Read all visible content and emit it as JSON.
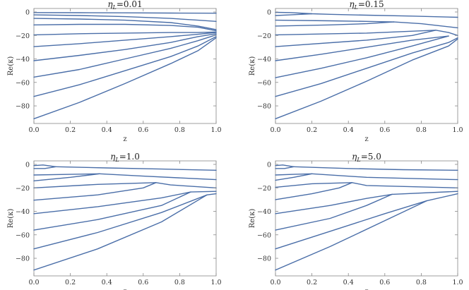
{
  "chart_data": [
    {
      "type": "line",
      "title_symbol": "η",
      "title_sub": "L",
      "title_value": "=0.01",
      "xlabel": "z",
      "ylabel": "Re(κ)",
      "xlim": [
        0,
        1
      ],
      "ylim": [
        -95,
        3
      ],
      "xticks": [
        "0.0",
        "0.2",
        "0.4",
        "0.6",
        "0.8",
        "1.0"
      ],
      "yticks": [
        "0",
        "-20",
        "-40",
        "-60",
        "-80"
      ],
      "line_color": "#4a6ea8",
      "series": [
        {
          "x": [
            0,
            0.25,
            0.5,
            0.75,
            1.0
          ],
          "y": [
            -0.5,
            -0.6,
            -0.7,
            -0.9,
            -1
          ]
        },
        {
          "x": [
            0,
            0.25,
            0.5,
            0.75,
            0.9,
            1.0
          ],
          "y": [
            -2.5,
            -3,
            -4,
            -5.5,
            -7,
            -8
          ]
        },
        {
          "x": [
            0,
            0.25,
            0.5,
            0.75,
            0.9,
            1.0
          ],
          "y": [
            -5.5,
            -6,
            -7,
            -9,
            -12,
            -15
          ]
        },
        {
          "x": [
            0,
            0.25,
            0.5,
            0.75,
            0.9,
            1.0
          ],
          "y": [
            -11,
            -10.5,
            -10.5,
            -11.5,
            -13,
            -16
          ]
        },
        {
          "x": [
            0,
            0.25,
            0.5,
            0.75,
            0.9,
            1.0
          ],
          "y": [
            -19.5,
            -18.5,
            -18,
            -17.5,
            -17.5,
            -17
          ]
        },
        {
          "x": [
            0,
            0.25,
            0.5,
            0.75,
            0.9,
            1.0
          ],
          "y": [
            -29.5,
            -27,
            -24,
            -21,
            -19,
            -17.5
          ]
        },
        {
          "x": [
            0,
            0.25,
            0.5,
            0.75,
            0.9,
            1.0
          ],
          "y": [
            -41.5,
            -37,
            -32,
            -26,
            -21,
            -18.5
          ]
        },
        {
          "x": [
            0,
            0.25,
            0.5,
            0.75,
            0.9,
            1.0
          ],
          "y": [
            -55.5,
            -49,
            -40,
            -31,
            -24.5,
            -19.5
          ]
        },
        {
          "x": [
            0,
            0.25,
            0.5,
            0.75,
            0.9,
            1.0
          ],
          "y": [
            -72,
            -62,
            -50,
            -38,
            -29,
            -21
          ]
        },
        {
          "x": [
            0,
            0.25,
            0.5,
            0.75,
            0.9,
            1.0
          ],
          "y": [
            -91,
            -77,
            -61,
            -44,
            -33,
            -22
          ]
        }
      ]
    },
    {
      "type": "line",
      "title_symbol": "η",
      "title_sub": "L",
      "title_value": "=0.15",
      "xlabel": "z",
      "ylabel": "Re(κ)",
      "xlim": [
        0,
        1
      ],
      "ylim": [
        -95,
        3
      ],
      "xticks": [
        "0.0",
        "0.2",
        "0.4",
        "0.6",
        "0.8",
        "1.0"
      ],
      "yticks": [
        "0",
        "-20",
        "-40",
        "-60",
        "-80"
      ],
      "line_color": "#4a6ea8",
      "series": [
        {
          "x": [
            0,
            0.08,
            0.2,
            0.3,
            0.5,
            0.75,
            1.0
          ],
          "y": [
            -0.3,
            -0.5,
            -1.5,
            -2,
            -2.7,
            -3.5,
            -4.5
          ]
        },
        {
          "x": [
            0,
            0.08,
            0.2
          ],
          "y": [
            -3,
            -2.5,
            -1.5
          ]
        },
        {
          "x": [
            0,
            0.3,
            0.5,
            0.65
          ],
          "y": [
            -7,
            -7.5,
            -8,
            -8.5
          ]
        },
        {
          "x": [
            0,
            0.3,
            0.5,
            0.65
          ],
          "y": [
            -12,
            -11,
            -10,
            -8.5
          ]
        },
        {
          "x": [
            0.65,
            0.8,
            1.0
          ],
          "y": [
            -8.5,
            -10,
            -13.5
          ]
        },
        {
          "x": [
            0,
            0.5,
            0.88
          ],
          "y": [
            -19.5,
            -18,
            -15.5
          ]
        },
        {
          "x": [
            0,
            0.5,
            0.75,
            0.88
          ],
          "y": [
            -29.5,
            -24,
            -20,
            -15.5
          ]
        },
        {
          "x": [
            0.88,
            0.95,
            1.0
          ],
          "y": [
            -15.5,
            -17.5,
            -20
          ]
        },
        {
          "x": [
            0,
            0.25,
            0.5,
            0.75,
            0.95
          ],
          "y": [
            -41.5,
            -36,
            -30,
            -24,
            -20.5
          ]
        },
        {
          "x": [
            0,
            0.25,
            0.5,
            0.75,
            0.95
          ],
          "y": [
            -56,
            -48,
            -39,
            -29,
            -20.5
          ]
        },
        {
          "x": [
            0,
            0.25,
            0.5,
            0.75,
            0.95,
            1.0
          ],
          "y": [
            -72,
            -61,
            -48,
            -35,
            -26,
            -22
          ]
        },
        {
          "x": [
            0,
            0.25,
            0.5,
            0.75,
            0.95,
            1.0
          ],
          "y": [
            -91,
            -76,
            -59,
            -41,
            -29,
            -23
          ]
        }
      ]
    },
    {
      "type": "line",
      "title_symbol": "η",
      "title_sub": "L",
      "title_value": "=1.0",
      "xlabel": "z",
      "ylabel": "Re(κ)",
      "xlim": [
        0,
        1
      ],
      "ylim": [
        -95,
        3
      ],
      "xticks": [
        "0.0",
        "0.2",
        "0.4",
        "0.6",
        "0.8",
        "1.0"
      ],
      "yticks": [
        "0",
        "-20",
        "-40",
        "-60",
        "-80"
      ],
      "line_color": "#4a6ea8",
      "series": [
        {
          "x": [
            0,
            0.05,
            0.12
          ],
          "y": [
            -1,
            -0.5,
            -2
          ]
        },
        {
          "x": [
            0,
            0.06,
            0.12
          ],
          "y": [
            -3.5,
            -3.5,
            -2
          ]
        },
        {
          "x": [
            0.12,
            0.4,
            0.7,
            1.0
          ],
          "y": [
            -2,
            -3,
            -4,
            -5
          ]
        },
        {
          "x": [
            0,
            0.2,
            0.36
          ],
          "y": [
            -9,
            -8.5,
            -8
          ]
        },
        {
          "x": [
            0,
            0.2,
            0.36
          ],
          "y": [
            -14,
            -11,
            -8
          ]
        },
        {
          "x": [
            0.36,
            0.6,
            1.0
          ],
          "y": [
            -8,
            -10,
            -13
          ]
        },
        {
          "x": [
            0,
            0.35,
            0.67
          ],
          "y": [
            -20,
            -17,
            -15.5
          ]
        },
        {
          "x": [
            0,
            0.35,
            0.6,
            0.67
          ],
          "y": [
            -30.5,
            -26,
            -20,
            -15.5
          ]
        },
        {
          "x": [
            0.67,
            0.75,
            1.0
          ],
          "y": [
            -15.5,
            -17.5,
            -20
          ]
        },
        {
          "x": [
            0,
            0.35,
            0.7,
            0.86
          ],
          "y": [
            -42,
            -36,
            -28.5,
            -23.5
          ]
        },
        {
          "x": [
            0,
            0.35,
            0.7,
            0.86
          ],
          "y": [
            -56,
            -47,
            -35,
            -23.5
          ]
        },
        {
          "x": [
            0.86,
            1.0
          ],
          "y": [
            -23.5,
            -23
          ]
        },
        {
          "x": [
            0,
            0.35,
            0.7,
            0.95
          ],
          "y": [
            -72,
            -58,
            -41,
            -26
          ]
        },
        {
          "x": [
            0,
            0.35,
            0.7,
            0.95
          ],
          "y": [
            -90,
            -72,
            -49,
            -26
          ]
        },
        {
          "x": [
            0.95,
            1.0
          ],
          "y": [
            -26,
            -25
          ]
        }
      ]
    },
    {
      "type": "line",
      "title_symbol": "η",
      "title_sub": "L",
      "title_value": "=5.0",
      "xlabel": "z",
      "ylabel": "Re(κ)",
      "xlim": [
        0,
        1
      ],
      "ylim": [
        -95,
        3
      ],
      "xticks": [
        "0.0",
        "0.2",
        "0.4",
        "0.6",
        "0.8",
        "1.0"
      ],
      "yticks": [
        "0",
        "-20",
        "-40",
        "-60",
        "-80"
      ],
      "line_color": "#4a6ea8",
      "series": [
        {
          "x": [
            0,
            0.04,
            0.1
          ],
          "y": [
            -1,
            -0.5,
            -2
          ]
        },
        {
          "x": [
            0,
            0.05,
            0.1
          ],
          "y": [
            -3.5,
            -3.5,
            -2
          ]
        },
        {
          "x": [
            0.1,
            0.4,
            0.7,
            1.0
          ],
          "y": [
            -2,
            -3.5,
            -4.5,
            -5
          ]
        },
        {
          "x": [
            0,
            0.1,
            0.2
          ],
          "y": [
            -9,
            -8.5,
            -8
          ]
        },
        {
          "x": [
            0,
            0.1,
            0.2
          ],
          "y": [
            -13.5,
            -11,
            -8
          ]
        },
        {
          "x": [
            0.2,
            0.5,
            1.0
          ],
          "y": [
            -8,
            -11,
            -13
          ]
        },
        {
          "x": [
            0,
            0.2,
            0.42
          ],
          "y": [
            -19.5,
            -16.5,
            -15.5
          ]
        },
        {
          "x": [
            0,
            0.2,
            0.35,
            0.42
          ],
          "y": [
            -30,
            -25,
            -20,
            -15.5
          ]
        },
        {
          "x": [
            0.42,
            0.5,
            1.0
          ],
          "y": [
            -15.5,
            -18,
            -20
          ]
        },
        {
          "x": [
            0,
            0.3,
            0.5,
            0.64
          ],
          "y": [
            -42,
            -35,
            -29,
            -25.5
          ]
        },
        {
          "x": [
            0,
            0.3,
            0.5,
            0.64
          ],
          "y": [
            -56,
            -46,
            -35,
            -25.5
          ]
        },
        {
          "x": [
            0.64,
            1.0
          ],
          "y": [
            -25.5,
            -23
          ]
        },
        {
          "x": [
            0,
            0.3,
            0.6,
            0.83
          ],
          "y": [
            -72,
            -57,
            -42,
            -31
          ]
        },
        {
          "x": [
            0,
            0.3,
            0.6,
            0.83
          ],
          "y": [
            -90,
            -70,
            -48,
            -31
          ]
        },
        {
          "x": [
            0.83,
            1.0
          ],
          "y": [
            -31,
            -25
          ]
        }
      ]
    }
  ]
}
